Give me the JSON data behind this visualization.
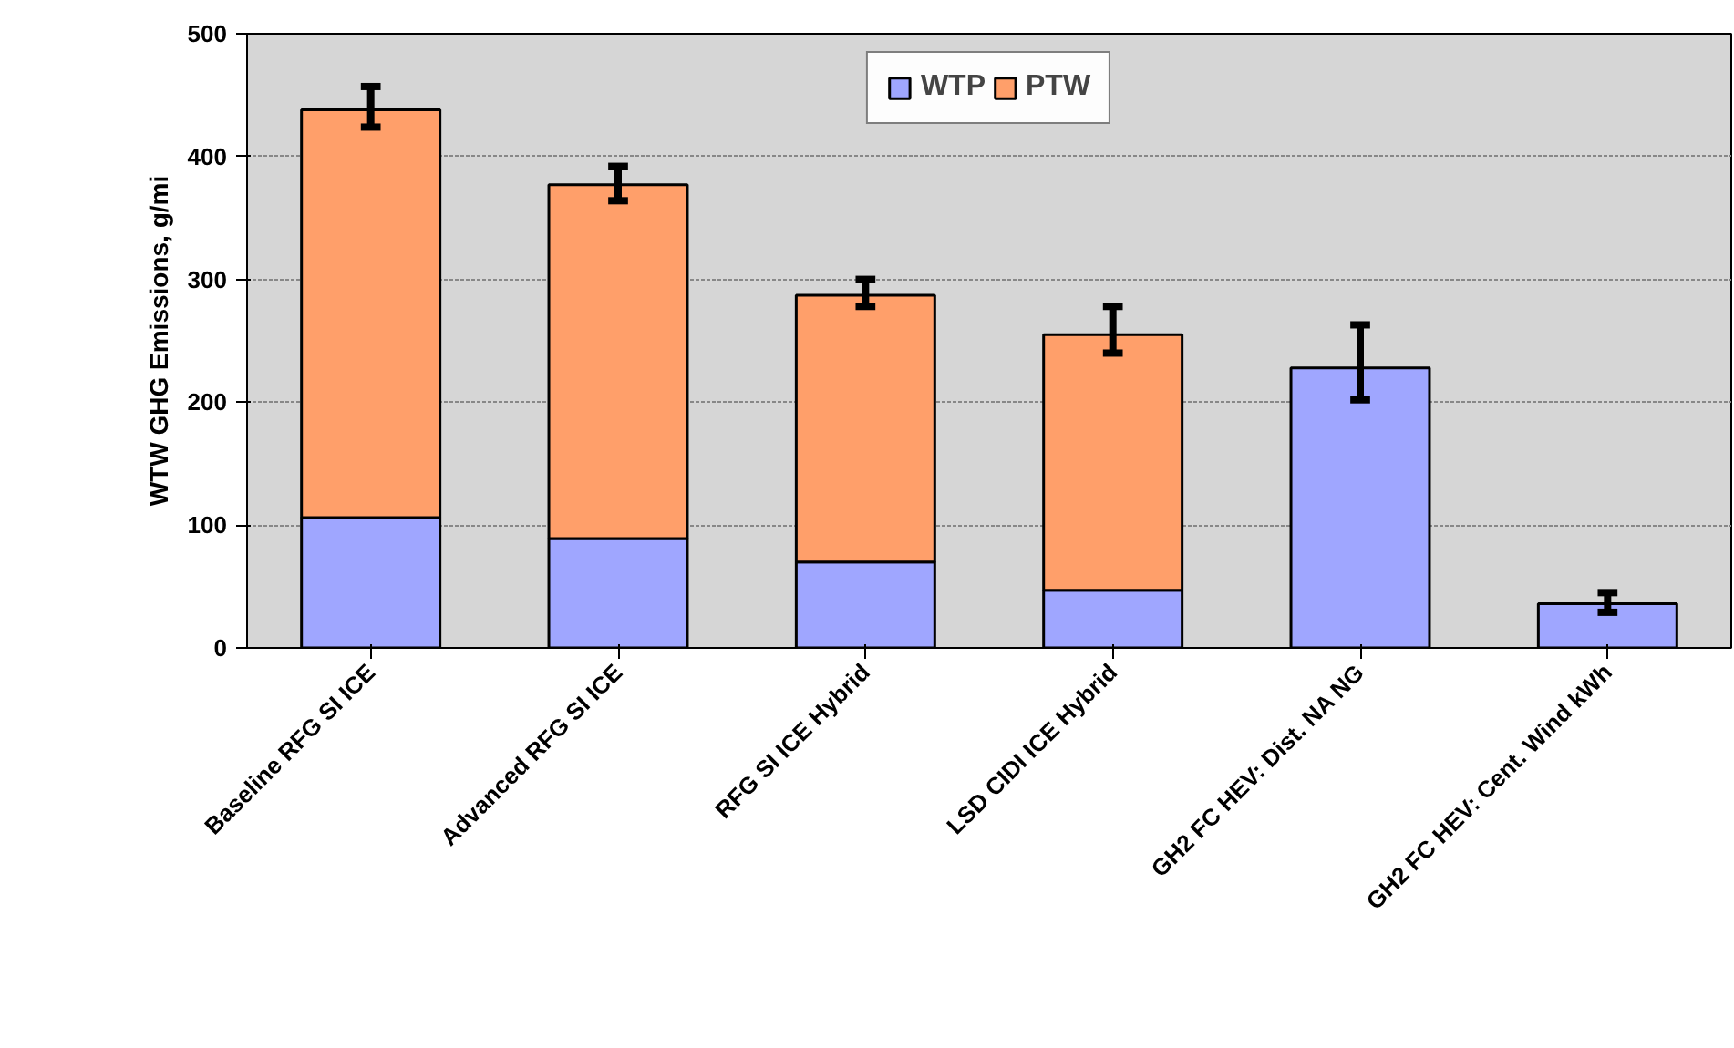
{
  "chart_data": {
    "type": "bar",
    "stacked": true,
    "ylabel": "WTW GHG Emissions, g/mi",
    "categories": [
      "Baseline RFG SI ICE",
      "Advanced RFG SI ICE",
      "RFG SI ICE Hybrid",
      "LSD CIDI ICE Hybrid",
      "GH2 FC HEV: Dist. NA NG",
      "GH2 FC HEV: Cent. Wind kWh"
    ],
    "series": [
      {
        "name": "WTP",
        "color": "#9fa6ff",
        "values": [
          106,
          89,
          70,
          47,
          228,
          36
        ],
        "errors": [
          null,
          null,
          null,
          null,
          [
            202,
            263
          ],
          [
            29,
            45
          ]
        ]
      },
      {
        "name": "PTW",
        "color": "#ff9f6a",
        "values": [
          332,
          288,
          217,
          208,
          null,
          null
        ],
        "errors": [
          [
            424,
            457
          ],
          [
            364,
            392
          ],
          [
            278,
            300
          ],
          [
            240,
            278
          ],
          null,
          null
        ]
      }
    ],
    "ylim": [
      0,
      500
    ],
    "yticks": [
      0,
      100,
      200,
      300,
      400,
      500
    ],
    "grid": "y",
    "legend": "top"
  }
}
